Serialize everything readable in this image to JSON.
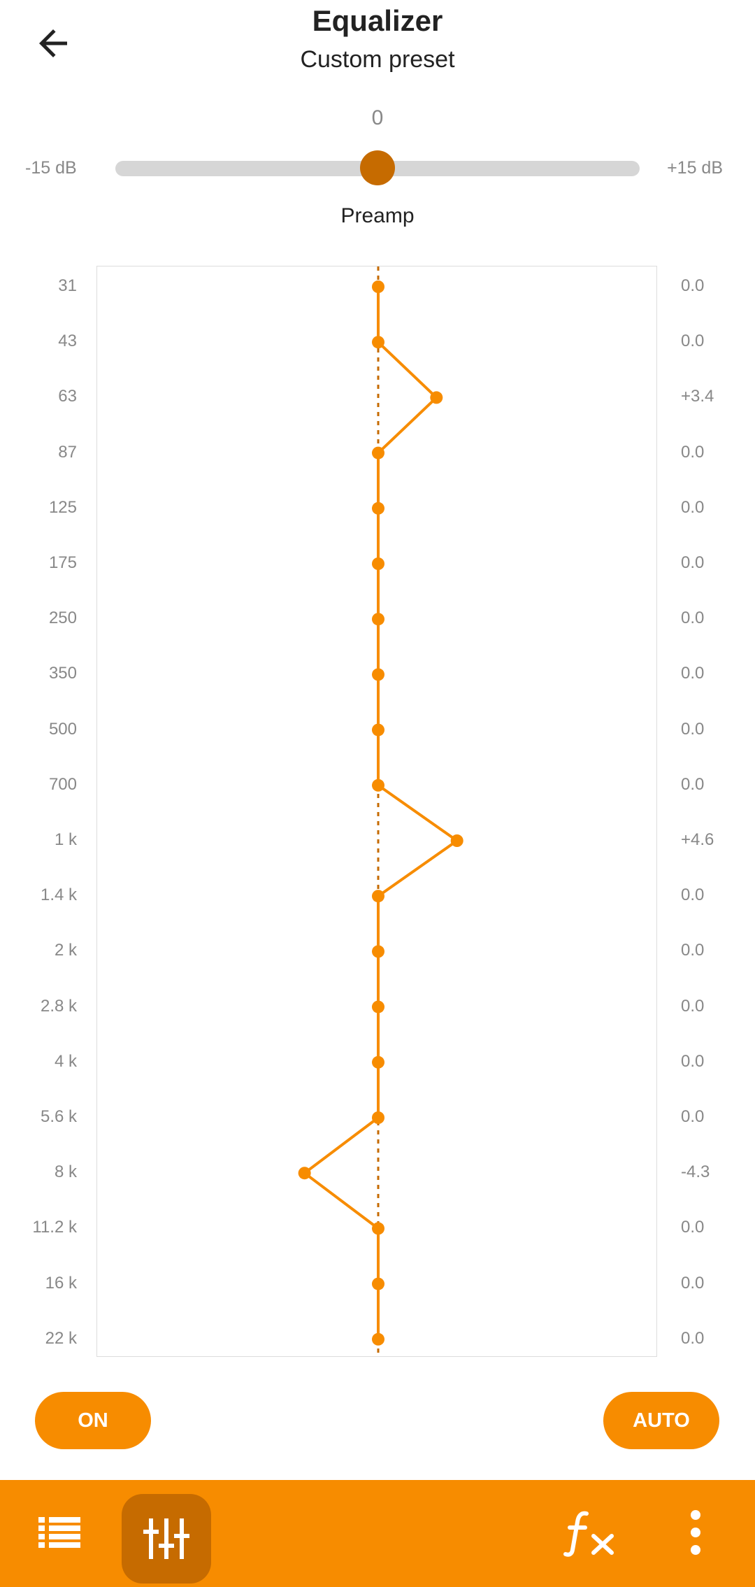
{
  "header": {
    "title": "Equalizer",
    "subtitle": "Custom preset",
    "back_icon": "arrow-left-icon"
  },
  "preamp": {
    "value": "0",
    "min_label": "-15 dB",
    "max_label": "+15 dB",
    "label": "Preamp",
    "level": 0.5
  },
  "bands": [
    {
      "freq": "31",
      "gain": 0.0,
      "gain_label": "0.0"
    },
    {
      "freq": "43",
      "gain": 0.0,
      "gain_label": "0.0"
    },
    {
      "freq": "63",
      "gain": 3.4,
      "gain_label": "+3.4"
    },
    {
      "freq": "87",
      "gain": 0.0,
      "gain_label": "0.0"
    },
    {
      "freq": "125",
      "gain": 0.0,
      "gain_label": "0.0"
    },
    {
      "freq": "175",
      "gain": 0.0,
      "gain_label": "0.0"
    },
    {
      "freq": "250",
      "gain": 0.0,
      "gain_label": "0.0"
    },
    {
      "freq": "350",
      "gain": 0.0,
      "gain_label": "0.0"
    },
    {
      "freq": "500",
      "gain": 0.0,
      "gain_label": "0.0"
    },
    {
      "freq": "700",
      "gain": 0.0,
      "gain_label": "0.0"
    },
    {
      "freq": "1 k",
      "gain": 4.6,
      "gain_label": "+4.6"
    },
    {
      "freq": "1.4 k",
      "gain": 0.0,
      "gain_label": "0.0"
    },
    {
      "freq": "2 k",
      "gain": 0.0,
      "gain_label": "0.0"
    },
    {
      "freq": "2.8 k",
      "gain": 0.0,
      "gain_label": "0.0"
    },
    {
      "freq": "4 k",
      "gain": 0.0,
      "gain_label": "0.0"
    },
    {
      "freq": "5.6 k",
      "gain": 0.0,
      "gain_label": "0.0"
    },
    {
      "freq": "8 k",
      "gain": -4.3,
      "gain_label": "-4.3"
    },
    {
      "freq": "11.2 k",
      "gain": 0.0,
      "gain_label": "0.0"
    },
    {
      "freq": "16 k",
      "gain": 0.0,
      "gain_label": "0.0"
    },
    {
      "freq": "22 k",
      "gain": 0.0,
      "gain_label": "0.0"
    }
  ],
  "gain_range": [
    -15,
    15
  ],
  "buttons": {
    "on_label": "ON",
    "auto_label": "AUTO"
  },
  "bottom_bar": {
    "icons": [
      "list-icon",
      "equalizer-sliders-icon",
      "fx-icon",
      "more-vert-icon"
    ]
  },
  "colors": {
    "accent": "#f78c00",
    "accent_dark": "#c66b00",
    "track": "#d6d6d6",
    "label_gray": "#888888"
  }
}
